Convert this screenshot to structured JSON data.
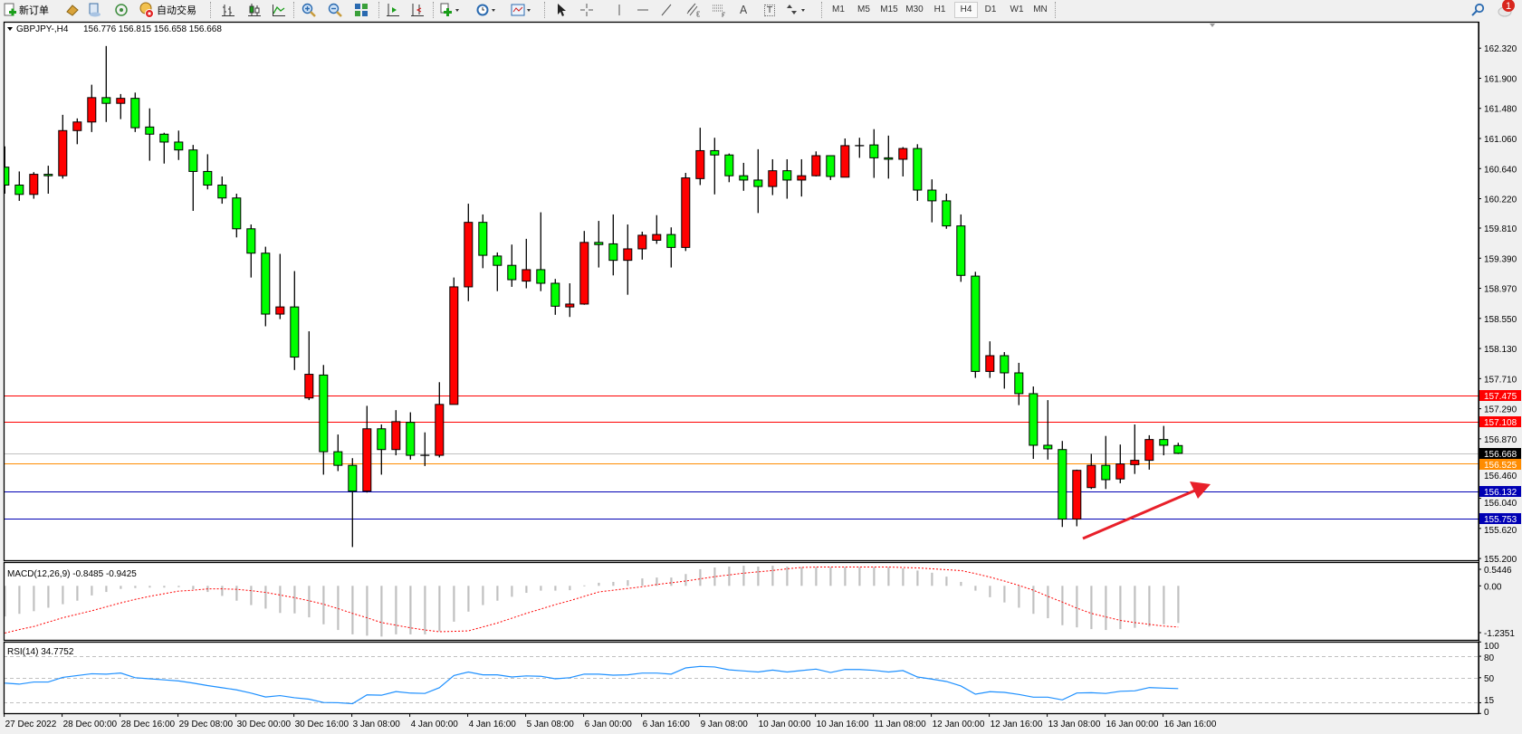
{
  "toolbar": {
    "new_order_label": "新订单",
    "auto_trading_label": "自动交易",
    "icons": [
      "new-order-icon",
      "market-watch-icon",
      "data-window-icon",
      "navigator-icon",
      "auto-trading-icon",
      "bar-chart-icon",
      "candlestick-icon",
      "line-chart-icon",
      "zoom-in-icon",
      "zoom-out-icon",
      "tile-windows-icon",
      "auto-scroll-icon",
      "chart-shift-icon",
      "indicators-icon",
      "periods-icon",
      "templates-icon",
      "cursor-icon",
      "crosshair-icon",
      "vertical-line-icon",
      "horizontal-line-icon",
      "trendline-icon",
      "equidistant-channel-icon",
      "fibonacci-icon",
      "text-icon",
      "text-label-icon",
      "arrows-icon",
      "search-icon",
      "notification-icon"
    ],
    "text_tool": "A",
    "text_label_tool": "T",
    "timeframes": [
      "M1",
      "M5",
      "M15",
      "M30",
      "H1",
      "H4",
      "D1",
      "W1",
      "MN"
    ],
    "active_timeframe": "H4",
    "notification_count": "1"
  },
  "chart": {
    "title": "GBPJPY-,H4",
    "ohlc": "156.776 156.815 156.658 156.668",
    "colors": {
      "bull": "#ff0000",
      "bear": "#00ff00",
      "outline": "#000000",
      "macd_hist": "#c0c0c0",
      "macd_signal": "#ff0000",
      "rsi": "#1e90ff",
      "arrow": "#e8202a"
    },
    "price_axis": [
      "162.320",
      "161.900",
      "161.480",
      "161.060",
      "160.640",
      "160.220",
      "159.810",
      "159.390",
      "158.970",
      "158.550",
      "158.130",
      "157.710",
      "157.290",
      "156.870",
      "156.460",
      "156.040",
      "155.620",
      "155.200"
    ],
    "levels": [
      {
        "price": "157.475",
        "color": "#ff0000"
      },
      {
        "price": "157.108",
        "color": "#ff0000"
      },
      {
        "price": "156.668",
        "color": "#c0c0c0",
        "label_bg": "#000000"
      },
      {
        "price": "156.525",
        "color": "#ff8c00"
      },
      {
        "price": "156.132",
        "color": "#0000b4"
      },
      {
        "price": "155.753",
        "color": "#0000b4"
      }
    ],
    "time_axis": [
      "27 Dec 2022",
      "28 Dec 00:00",
      "28 Dec 16:00",
      "29 Dec 08:00",
      "30 Dec 00:00",
      "30 Dec 16:00",
      "3 Jan 08:00",
      "4 Jan 00:00",
      "4 Jan 16:00",
      "5 Jan 08:00",
      "6 Jan 00:00",
      "6 Jan 16:00",
      "9 Jan 08:00",
      "10 Jan 00:00",
      "10 Jan 16:00",
      "11 Jan 08:00",
      "12 Jan 00:00",
      "12 Jan 16:00",
      "13 Jan 08:00",
      "16 Jan 00:00",
      "16 Jan 16:00"
    ],
    "candles": [
      [
        160.66,
        160.95,
        160.29,
        160.41
      ],
      [
        160.41,
        160.6,
        160.19,
        160.28
      ],
      [
        160.28,
        160.59,
        160.22,
        160.56
      ],
      [
        160.56,
        160.68,
        160.29,
        160.54
      ],
      [
        160.54,
        161.39,
        160.5,
        161.17
      ],
      [
        161.17,
        161.34,
        160.98,
        161.29
      ],
      [
        161.29,
        161.81,
        161.15,
        161.63
      ],
      [
        161.63,
        162.35,
        161.29,
        161.55
      ],
      [
        161.55,
        161.68,
        161.33,
        161.62
      ],
      [
        161.62,
        161.7,
        161.15,
        161.21
      ],
      [
        161.22,
        161.48,
        160.75,
        161.12
      ],
      [
        161.12,
        161.14,
        160.71,
        161.01
      ],
      [
        161.01,
        161.17,
        160.76,
        160.9
      ],
      [
        160.9,
        160.97,
        160.05,
        160.6
      ],
      [
        160.6,
        160.84,
        160.35,
        160.41
      ],
      [
        160.41,
        160.53,
        160.15,
        160.23
      ],
      [
        160.23,
        160.29,
        159.68,
        159.8
      ],
      [
        159.8,
        159.86,
        159.12,
        159.46
      ],
      [
        159.46,
        159.55,
        158.44,
        158.61
      ],
      [
        158.61,
        159.45,
        158.54,
        158.71
      ],
      [
        158.71,
        159.21,
        157.83,
        158.01
      ],
      [
        157.44,
        158.37,
        157.41,
        157.77
      ],
      [
        157.76,
        157.9,
        156.37,
        156.69
      ],
      [
        156.69,
        156.93,
        156.42,
        156.5
      ],
      [
        156.5,
        156.6,
        155.36,
        156.14
      ],
      [
        156.14,
        157.33,
        156.12,
        157.01
      ],
      [
        157.01,
        157.07,
        156.37,
        156.72
      ],
      [
        156.72,
        157.27,
        156.64,
        157.11
      ],
      [
        157.1,
        157.24,
        156.58,
        156.64
      ],
      [
        156.64,
        156.96,
        156.49,
        156.64
      ],
      [
        156.64,
        157.66,
        156.61,
        157.35
      ],
      [
        157.35,
        159.12,
        157.35,
        158.99
      ],
      [
        158.99,
        160.15,
        158.79,
        159.89
      ],
      [
        159.89,
        160.0,
        159.25,
        159.43
      ],
      [
        159.42,
        159.47,
        158.93,
        159.29
      ],
      [
        159.29,
        159.58,
        158.99,
        159.09
      ],
      [
        159.07,
        159.66,
        158.97,
        159.23
      ],
      [
        159.23,
        160.03,
        158.93,
        159.04
      ],
      [
        159.04,
        159.1,
        158.6,
        158.72
      ],
      [
        158.71,
        159.04,
        158.57,
        158.75
      ],
      [
        158.75,
        159.77,
        158.74,
        159.61
      ],
      [
        159.61,
        159.91,
        159.26,
        159.58
      ],
      [
        159.59,
        160.0,
        159.15,
        159.36
      ],
      [
        159.36,
        159.86,
        158.88,
        159.52
      ],
      [
        159.52,
        159.76,
        159.37,
        159.71
      ],
      [
        159.64,
        159.99,
        159.59,
        159.72
      ],
      [
        159.72,
        159.82,
        159.26,
        159.54
      ],
      [
        159.54,
        160.58,
        159.49,
        160.51
      ],
      [
        160.5,
        161.21,
        160.41,
        160.89
      ],
      [
        160.89,
        161.07,
        160.28,
        160.83
      ],
      [
        160.83,
        160.85,
        160.45,
        160.54
      ],
      [
        160.54,
        160.72,
        160.33,
        160.48
      ],
      [
        160.48,
        160.91,
        160.02,
        160.39
      ],
      [
        160.39,
        160.77,
        160.27,
        160.61
      ],
      [
        160.61,
        160.77,
        160.22,
        160.48
      ],
      [
        160.48,
        160.77,
        160.25,
        160.54
      ],
      [
        160.54,
        160.88,
        160.53,
        160.82
      ],
      [
        160.82,
        160.82,
        160.48,
        160.53
      ],
      [
        160.52,
        161.06,
        160.52,
        160.96
      ],
      [
        160.96,
        161.07,
        160.79,
        160.96
      ],
      [
        160.97,
        161.19,
        160.51,
        160.79
      ],
      [
        160.79,
        161.1,
        160.5,
        160.77
      ],
      [
        160.77,
        160.94,
        160.53,
        160.92
      ],
      [
        160.92,
        160.98,
        160.19,
        160.34
      ],
      [
        160.34,
        160.49,
        159.89,
        160.19
      ],
      [
        160.19,
        160.29,
        159.8,
        159.84
      ],
      [
        159.84,
        160.0,
        159.06,
        159.15
      ],
      [
        159.14,
        159.2,
        157.72,
        157.81
      ],
      [
        157.81,
        158.23,
        157.72,
        158.03
      ],
      [
        158.03,
        158.08,
        157.57,
        157.79
      ],
      [
        157.79,
        157.93,
        157.34,
        157.5
      ],
      [
        157.5,
        157.6,
        156.59,
        156.78
      ],
      [
        156.78,
        157.41,
        156.58,
        156.73
      ],
      [
        156.72,
        156.84,
        155.64,
        155.75
      ],
      [
        155.75,
        156.44,
        155.65,
        156.43
      ],
      [
        156.19,
        156.66,
        156.17,
        156.5
      ],
      [
        156.5,
        156.91,
        156.17,
        156.3
      ],
      [
        156.31,
        156.79,
        156.25,
        156.52
      ],
      [
        156.51,
        157.07,
        156.38,
        156.57
      ],
      [
        156.57,
        156.92,
        156.44,
        156.86
      ],
      [
        156.86,
        157.05,
        156.64,
        156.78
      ],
      [
        156.776,
        156.815,
        156.658,
        156.668
      ]
    ]
  },
  "macd": {
    "label": "MACD(12,26,9) -0.8485 -0.9425",
    "axis": [
      "0.5446",
      "0.00",
      "-1.2351"
    ],
    "histogram": [
      -0.7,
      -0.64,
      -0.58,
      -0.5,
      -0.42,
      -0.34,
      -0.22,
      -0.14,
      -0.07,
      -0.05,
      -0.04,
      -0.04,
      -0.03,
      -0.08,
      -0.14,
      -0.23,
      -0.34,
      -0.44,
      -0.52,
      -0.62,
      -0.63,
      -0.72,
      -0.88,
      -1.01,
      -1.11,
      -1.14,
      -1.16,
      -1.11,
      -1.11,
      -1.11,
      -1.04,
      -0.82,
      -0.59,
      -0.44,
      -0.34,
      -0.25,
      -0.16,
      -0.11,
      -0.11,
      -0.1,
      0.01,
      0.07,
      0.09,
      0.13,
      0.17,
      0.19,
      0.19,
      0.27,
      0.38,
      0.42,
      0.44,
      0.46,
      0.44,
      0.46,
      0.44,
      0.43,
      0.43,
      0.43,
      0.43,
      0.43,
      0.43,
      0.43,
      0.4,
      0.35,
      0.3,
      0.21,
      0.09,
      -0.11,
      -0.26,
      -0.38,
      -0.5,
      -0.64,
      -0.74,
      -0.9,
      -0.95,
      -0.99,
      -1.01,
      -0.99,
      -0.96,
      -0.93,
      -0.88,
      -0.8485
    ],
    "signal": [
      -1.08,
      -1.0,
      -0.93,
      -0.83,
      -0.73,
      -0.65,
      -0.57,
      -0.48,
      -0.39,
      -0.31,
      -0.24,
      -0.18,
      -0.12,
      -0.1,
      -0.07,
      -0.07,
      -0.08,
      -0.11,
      -0.15,
      -0.21,
      -0.27,
      -0.34,
      -0.42,
      -0.52,
      -0.63,
      -0.73,
      -0.84,
      -0.9,
      -0.96,
      -1.01,
      -1.05,
      -1.04,
      -1.03,
      -0.94,
      -0.85,
      -0.74,
      -0.63,
      -0.53,
      -0.43,
      -0.34,
      -0.24,
      -0.14,
      -0.1,
      -0.06,
      -0.02,
      0.03,
      0.07,
      0.11,
      0.16,
      0.21,
      0.25,
      0.29,
      0.32,
      0.35,
      0.39,
      0.42,
      0.43,
      0.43,
      0.43,
      0.43,
      0.43,
      0.43,
      0.42,
      0.41,
      0.39,
      0.37,
      0.35,
      0.28,
      0.2,
      0.11,
      0.01,
      -0.1,
      -0.24,
      -0.37,
      -0.51,
      -0.63,
      -0.71,
      -0.79,
      -0.84,
      -0.88,
      -0.92,
      -0.9425
    ]
  },
  "rsi": {
    "label": "RSI(14) 34.7752",
    "axis": [
      "100",
      "80",
      "50",
      "15",
      "0"
    ],
    "values": [
      42.5,
      41,
      44,
      44,
      50.5,
      53,
      55.5,
      55,
      56.5,
      50,
      48.5,
      47,
      45.5,
      42.5,
      39,
      36,
      33,
      28.5,
      23,
      25,
      22,
      20,
      15.3,
      15,
      13.7,
      26,
      25.5,
      30.6,
      28.5,
      28,
      36,
      53,
      58,
      54,
      54,
      51,
      52.5,
      52,
      48.5,
      50,
      55,
      55,
      53.5,
      54,
      56.5,
      56.5,
      55,
      63.7,
      65.8,
      65,
      61,
      59.5,
      58,
      60.7,
      58,
      60,
      62,
      57.3,
      61.5,
      61.5,
      60.3,
      58,
      60,
      51,
      48,
      44.7,
      38.4,
      27,
      30.4,
      29.5,
      26.6,
      22.8,
      22.8,
      19,
      28.6,
      29,
      28,
      31,
      31.6,
      36.2,
      35.4,
      34.7752
    ]
  }
}
